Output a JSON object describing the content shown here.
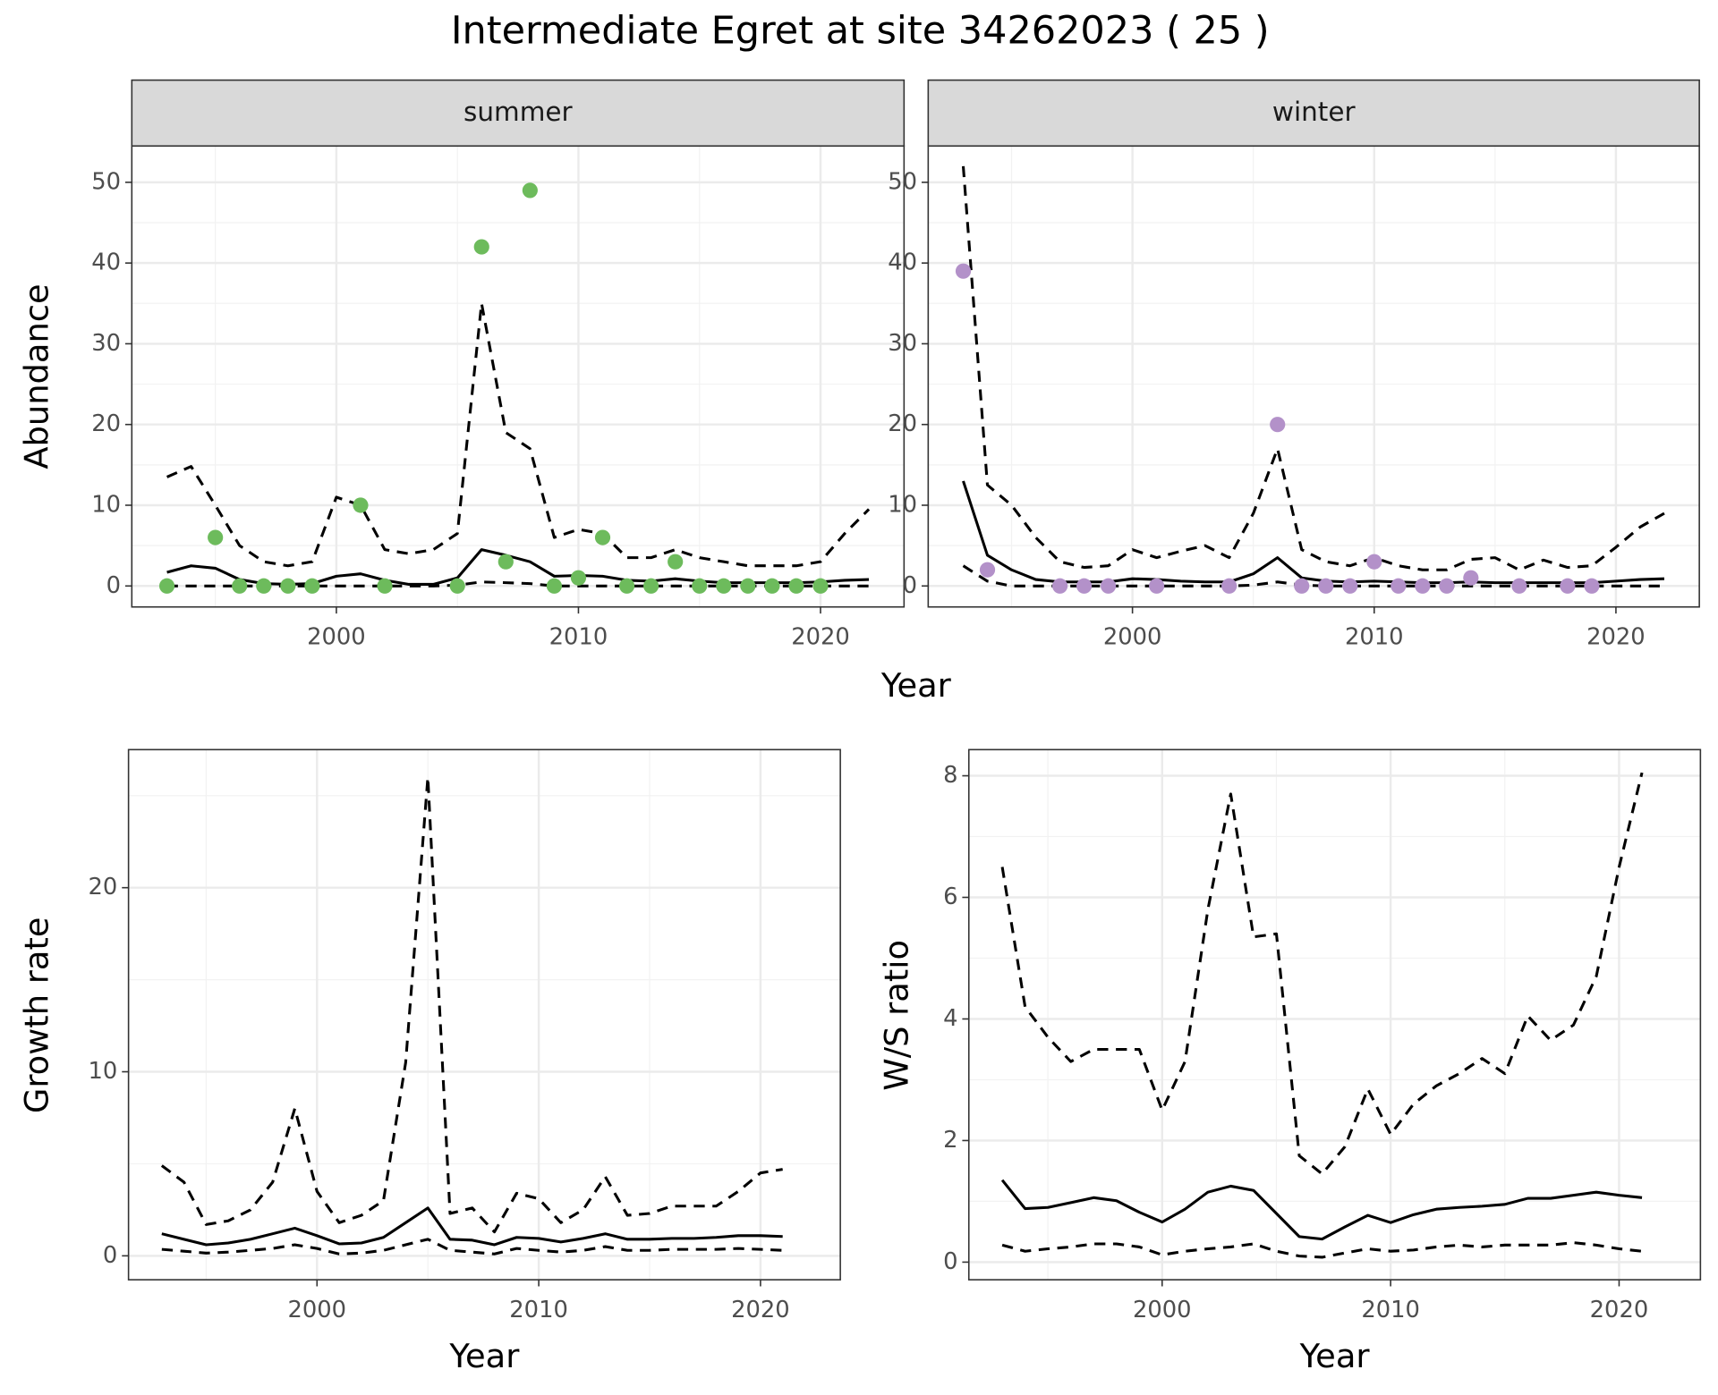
{
  "title": "Intermediate Egret at site 34262023 ( 25 )",
  "chart_data": [
    {
      "type": "line",
      "panel": "summer",
      "xlabel": "Year",
      "ylabel": "Abundance",
      "x": [
        1993,
        1994,
        1995,
        1996,
        1997,
        1998,
        1999,
        2000,
        2001,
        2002,
        2003,
        2004,
        2005,
        2006,
        2007,
        2008,
        2009,
        2010,
        2011,
        2012,
        2013,
        2014,
        2015,
        2016,
        2017,
        2018,
        2019,
        2020,
        2021,
        2022
      ],
      "xlim": [
        1991.55,
        2023.45
      ],
      "xticks": [
        2000,
        2010,
        2020
      ],
      "x_minor_ticks": [
        1995,
        2005,
        2015
      ],
      "ylim": [
        -2.6,
        54.5
      ],
      "yticks": [
        0,
        10,
        20,
        30,
        40,
        50
      ],
      "y_minor_ticks": [
        5,
        15,
        25,
        35,
        45
      ],
      "grid": true,
      "series": [
        {
          "line_style": "dashed",
          "color": "#000000",
          "values": [
            13.5,
            14.8,
            10,
            5,
            3,
            2.5,
            3,
            11,
            10,
            4.5,
            4,
            4.5,
            6.5,
            35,
            19,
            17,
            6,
            7,
            6.5,
            3.5,
            3.5,
            4.5,
            3.5,
            3,
            2.5,
            2.5,
            2.5,
            3,
            6.5,
            9.5
          ]
        },
        {
          "line_style": "solid",
          "color": "#000000",
          "values": [
            1.7,
            2.5,
            2.2,
            0.8,
            0.3,
            0.2,
            0.3,
            1.2,
            1.5,
            0.7,
            0.2,
            0.2,
            1.0,
            4.5,
            3.8,
            3.0,
            1.2,
            1.3,
            1.2,
            0.7,
            0.6,
            0.9,
            0.6,
            0.4,
            0.4,
            0.4,
            0.4,
            0.5,
            0.7,
            0.8
          ]
        },
        {
          "line_style": "dashed",
          "color": "#000000",
          "values": [
            0,
            0,
            0,
            0,
            0,
            0,
            0,
            0,
            0,
            0,
            0,
            0,
            0.1,
            0.5,
            0.4,
            0.3,
            0,
            0,
            0,
            0,
            0,
            0,
            0,
            0,
            0,
            0,
            0,
            0,
            0,
            0
          ]
        },
        {
          "line_style": "points",
          "color": "#6dbb5c",
          "values": [
            0,
            null,
            6,
            0,
            0,
            0,
            0,
            null,
            10,
            0,
            null,
            null,
            0,
            42,
            3,
            49,
            0,
            1,
            6,
            0,
            0,
            3,
            0,
            0,
            0,
            0,
            0,
            0,
            null,
            null
          ]
        }
      ]
    },
    {
      "type": "line",
      "panel": "winter",
      "x": [
        1993,
        1994,
        1995,
        1996,
        1997,
        1998,
        1999,
        2000,
        2001,
        2002,
        2003,
        2004,
        2005,
        2006,
        2007,
        2008,
        2009,
        2010,
        2011,
        2012,
        2013,
        2014,
        2015,
        2016,
        2017,
        2018,
        2019,
        2020,
        2021,
        2022
      ],
      "xlim": [
        1991.55,
        2023.45
      ],
      "xticks": [
        2000,
        2010,
        2020
      ],
      "x_minor_ticks": [
        1995,
        2005,
        2015
      ],
      "ylim": [
        -2.6,
        54.5
      ],
      "yticks": [
        0,
        10,
        20,
        30,
        40,
        50
      ],
      "y_minor_ticks": [
        5,
        15,
        25,
        35,
        45
      ],
      "grid": true,
      "series": [
        {
          "line_style": "dashed",
          "color": "#000000",
          "values": [
            52,
            12.5,
            10,
            6,
            3,
            2.3,
            2.5,
            4.5,
            3.5,
            4.3,
            5,
            3.5,
            9,
            17,
            4.5,
            3,
            2.5,
            3.5,
            2.5,
            2,
            2,
            3.3,
            3.5,
            2,
            3.2,
            2.3,
            2.5,
            4.8,
            7.3,
            9
          ]
        },
        {
          "line_style": "solid",
          "color": "#000000",
          "values": [
            13,
            3.8,
            2,
            0.8,
            0.5,
            0.5,
            0.5,
            0.9,
            0.8,
            0.6,
            0.5,
            0.5,
            1.5,
            3.5,
            1.0,
            0.6,
            0.5,
            0.6,
            0.5,
            0.4,
            0.4,
            0.5,
            0.4,
            0.4,
            0.4,
            0.4,
            0.4,
            0.6,
            0.8,
            0.9
          ]
        },
        {
          "line_style": "dashed",
          "color": "#000000",
          "values": [
            2.5,
            0.6,
            0,
            0,
            0,
            0,
            0,
            0,
            0,
            0,
            0,
            0,
            0.1,
            0.5,
            0.1,
            0,
            0,
            0,
            0,
            0,
            0,
            0,
            0,
            0,
            0,
            0,
            0,
            0,
            0,
            0
          ]
        },
        {
          "line_style": "points",
          "color": "#b391c9",
          "values": [
            39,
            2,
            null,
            null,
            0,
            0,
            0,
            null,
            0,
            null,
            null,
            0,
            null,
            20,
            0,
            0,
            0,
            3,
            0,
            0,
            0,
            1,
            null,
            0,
            null,
            0,
            0,
            null,
            null,
            null
          ]
        }
      ]
    },
    {
      "type": "line",
      "xlabel": "Year",
      "ylabel": "Growth rate",
      "x": [
        1993,
        1994,
        1995,
        1996,
        1997,
        1998,
        1999,
        2000,
        2001,
        2002,
        2003,
        2004,
        2005,
        2006,
        2007,
        2008,
        2009,
        2010,
        2011,
        2012,
        2013,
        2014,
        2015,
        2016,
        2017,
        2018,
        2019,
        2020,
        2021
      ],
      "xlim": [
        1991.5,
        2023.6
      ],
      "xticks": [
        2000,
        2010,
        2020
      ],
      "x_minor_ticks": [
        1995,
        2005,
        2015
      ],
      "ylim": [
        -1.3,
        27.5
      ],
      "yticks": [
        0,
        10,
        20
      ],
      "y_minor_ticks": [
        5,
        15,
        25
      ],
      "grid": true,
      "series": [
        {
          "line_style": "dashed",
          "color": "#000000",
          "values": [
            4.9,
            4.0,
            1.7,
            1.9,
            2.5,
            4.0,
            8.0,
            3.5,
            1.8,
            2.2,
            3.0,
            10.5,
            26,
            2.3,
            2.6,
            1.3,
            3.4,
            3.1,
            1.8,
            2.5,
            4.3,
            2.2,
            2.3,
            2.7,
            2.7,
            2.7,
            3.5,
            4.5,
            4.7
          ]
        },
        {
          "line_style": "solid",
          "color": "#000000",
          "values": [
            1.2,
            0.9,
            0.6,
            0.7,
            0.9,
            1.2,
            1.5,
            1.1,
            0.65,
            0.7,
            1.0,
            1.8,
            2.6,
            0.9,
            0.85,
            0.6,
            1.0,
            0.95,
            0.75,
            0.95,
            1.2,
            0.9,
            0.9,
            0.95,
            0.95,
            1.0,
            1.1,
            1.1,
            1.05
          ]
        },
        {
          "line_style": "dashed",
          "color": "#000000",
          "values": [
            0.35,
            0.25,
            0.15,
            0.2,
            0.3,
            0.4,
            0.6,
            0.4,
            0.1,
            0.15,
            0.3,
            0.6,
            0.9,
            0.3,
            0.2,
            0.1,
            0.4,
            0.3,
            0.2,
            0.3,
            0.5,
            0.3,
            0.3,
            0.35,
            0.35,
            0.35,
            0.4,
            0.35,
            0.3
          ]
        }
      ]
    },
    {
      "type": "line",
      "xlabel": "Year",
      "ylabel": "W/S ratio",
      "x": [
        1993,
        1994,
        1995,
        1996,
        1997,
        1998,
        1999,
        2000,
        2001,
        2002,
        2003,
        2004,
        2005,
        2006,
        2007,
        2008,
        2009,
        2010,
        2011,
        2012,
        2013,
        2014,
        2015,
        2016,
        2017,
        2018,
        2019,
        2020,
        2021
      ],
      "xlim": [
        1991.54,
        2023.56
      ],
      "xticks": [
        2000,
        2010,
        2020
      ],
      "x_minor_ticks": [
        1995,
        2005,
        2015
      ],
      "ylim": [
        -0.29,
        8.43
      ],
      "yticks": [
        0,
        2,
        4,
        6,
        8
      ],
      "y_minor_ticks": [
        1,
        3,
        5,
        7
      ],
      "grid": true,
      "series": [
        {
          "line_style": "dashed",
          "color": "#000000",
          "values": [
            6.5,
            4.2,
            3.7,
            3.3,
            3.5,
            3.5,
            3.5,
            2.5,
            3.3,
            5.8,
            7.7,
            5.35,
            5.4,
            1.75,
            1.45,
            1.9,
            2.85,
            2.1,
            2.6,
            2.9,
            3.1,
            3.35,
            3.1,
            4.05,
            3.65,
            3.9,
            4.7,
            6.5,
            8.05
          ]
        },
        {
          "line_style": "solid",
          "color": "#000000",
          "values": [
            1.35,
            0.88,
            0.9,
            0.98,
            1.06,
            1.01,
            0.82,
            0.66,
            0.87,
            1.15,
            1.25,
            1.18,
            0.8,
            0.42,
            0.38,
            0.58,
            0.77,
            0.65,
            0.78,
            0.87,
            0.9,
            0.92,
            0.95,
            1.05,
            1.05,
            1.1,
            1.15,
            1.1,
            1.06
          ]
        },
        {
          "line_style": "dashed",
          "color": "#000000",
          "values": [
            0.28,
            0.18,
            0.22,
            0.25,
            0.3,
            0.3,
            0.25,
            0.12,
            0.18,
            0.22,
            0.25,
            0.3,
            0.18,
            0.1,
            0.08,
            0.15,
            0.22,
            0.18,
            0.2,
            0.25,
            0.28,
            0.25,
            0.28,
            0.28,
            0.28,
            0.32,
            0.28,
            0.22,
            0.18
          ]
        }
      ]
    }
  ]
}
